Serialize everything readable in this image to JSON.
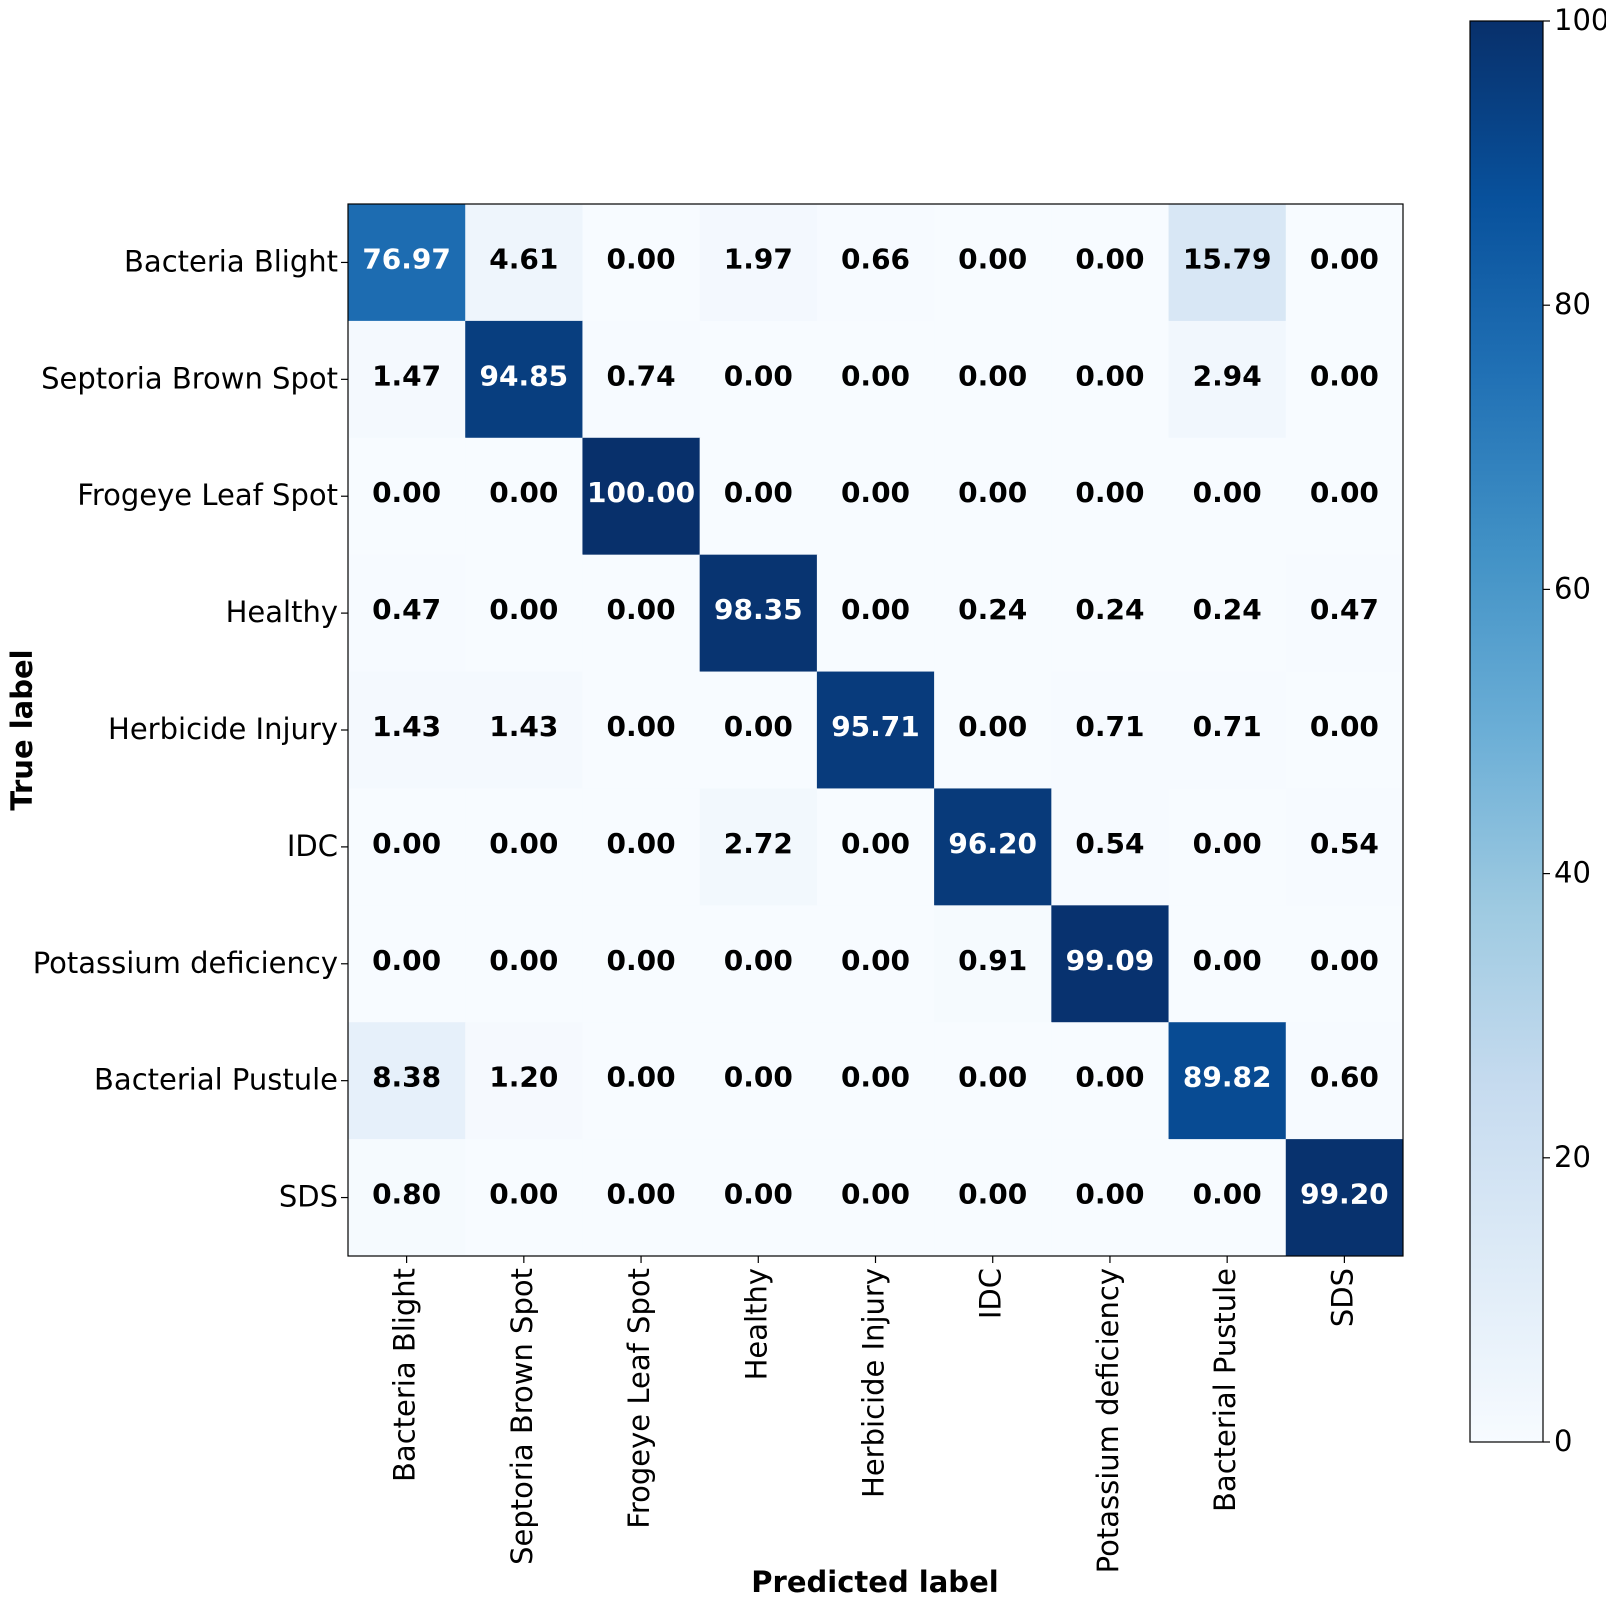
{
  "chart_data": {
    "type": "heatmap",
    "title": "",
    "xlabel": "Predicted label",
    "ylabel": "True label",
    "categories": [
      "Bacteria Blight",
      "Septoria Brown Spot",
      "Frogeye Leaf Spot",
      "Healthy",
      "Herbicide Injury",
      "IDC",
      "Potassium deficiency",
      "Bacterial Pustule",
      "SDS"
    ],
    "cell_labels": [
      [
        "76.97",
        "4.61",
        "0.00",
        "1.97",
        "0.66",
        "0.00",
        "0.00",
        "15.79",
        "0.00"
      ],
      [
        "1.47",
        "94.85",
        "0.74",
        "0.00",
        "0.00",
        "0.00",
        "0.00",
        "2.94",
        "0.00"
      ],
      [
        "0.00",
        "0.00",
        "100.00",
        "0.00",
        "0.00",
        "0.00",
        "0.00",
        "0.00",
        "0.00"
      ],
      [
        "0.47",
        "0.00",
        "0.00",
        "98.35",
        "0.00",
        "0.24",
        "0.24",
        "0.24",
        "0.47"
      ],
      [
        "1.43",
        "1.43",
        "0.00",
        "0.00",
        "95.71",
        "0.00",
        "0.71",
        "0.71",
        "0.00"
      ],
      [
        "0.00",
        "0.00",
        "0.00",
        "2.72",
        "0.00",
        "96.20",
        "0.54",
        "0.00",
        "0.54"
      ],
      [
        "0.00",
        "0.00",
        "0.00",
        "0.00",
        "0.00",
        "0.91",
        "99.09",
        "0.00",
        "0.00"
      ],
      [
        "8.38",
        "1.20",
        "0.00",
        "0.00",
        "0.00",
        "0.00",
        "0.00",
        "89.82",
        "0.60"
      ],
      [
        "0.80",
        "0.00",
        "0.00",
        "0.00",
        "0.00",
        "0.00",
        "0.00",
        "0.00",
        "99.20"
      ]
    ],
    "colormap": "Blues",
    "color_range": [
      0,
      100
    ],
    "colorbar": {
      "ticks": [
        0,
        20,
        40,
        60,
        80,
        100
      ],
      "tick_labels": [
        "0",
        "20",
        "40",
        "60",
        "80",
        "100"
      ]
    },
    "grid": false
  }
}
